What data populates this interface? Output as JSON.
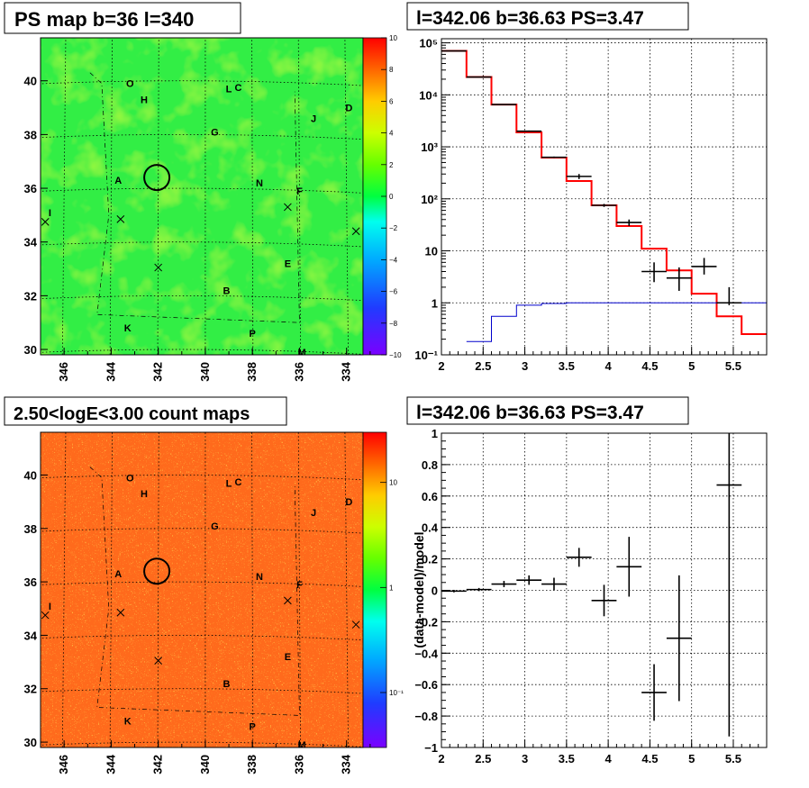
{
  "panels": {
    "ps_map": {
      "title": "PS map b=36 l=340",
      "colorbar_ticks": [
        "10",
        "8",
        "6",
        "4",
        "2",
        "0",
        "−2",
        "−4",
        "−6",
        "−8",
        "−10"
      ],
      "x_ticks": [
        "346",
        "344",
        "342",
        "340",
        "338",
        "336",
        "334"
      ],
      "y_ticks": [
        "40",
        "38",
        "36",
        "34",
        "32",
        "30"
      ]
    },
    "spectrum": {
      "title": "l=342.06 b=36.63 PS=3.47",
      "x_ticks": [
        "2",
        "2.5",
        "3",
        "3.5",
        "4",
        "4.5",
        "5",
        "5.5"
      ],
      "y_ticks": [
        "10⁵",
        "10⁴",
        "10³",
        "10²",
        "10",
        "1",
        "10⁻¹"
      ]
    },
    "count_map": {
      "title": "2.50<logE<3.00 count maps",
      "colorbar_ticks": [
        "10",
        "1",
        "10⁻¹"
      ],
      "x_ticks": [
        "346",
        "344",
        "342",
        "340",
        "338",
        "336",
        "334"
      ],
      "y_ticks": [
        "40",
        "38",
        "36",
        "34",
        "32",
        "30"
      ]
    },
    "residual": {
      "title": "l=342.06 b=36.63 PS=3.47",
      "ylabel": "(data-model)/model",
      "x_ticks": [
        "2",
        "2.5",
        "3",
        "3.5",
        "4",
        "4.5",
        "5",
        "5.5"
      ],
      "y_ticks": [
        "1",
        "0.8",
        "0.6",
        "0.4",
        "0.2",
        "0",
        "−0.2",
        "−0.4",
        "−0.6",
        "−0.8",
        "−1"
      ]
    }
  },
  "source_labels": [
    "O",
    "L",
    "C",
    "H",
    "D",
    "J",
    "G",
    "A",
    "N",
    "F",
    "I",
    "E",
    "B",
    "K",
    "P",
    "M"
  ],
  "colors": {
    "model_red": "#ff0000",
    "background_blue": "#0000cc",
    "data_black": "#000000",
    "ps_map_fill": "#33ee44",
    "count_map_fill": "#ff6a1a"
  },
  "chart_data": [
    {
      "type": "heatmap",
      "name_printed": "PS map b=36 l=340",
      "xlim": [
        347,
        333.3
      ],
      "ylim": [
        29.8,
        41.6
      ],
      "color_range": [
        -10,
        10
      ],
      "markers": [
        {
          "label": "O",
          "l": 343.2,
          "b": 39.9
        },
        {
          "label": "L",
          "l": 339.0,
          "b": 39.7
        },
        {
          "label": "C",
          "l": 338.6,
          "b": 39.75
        },
        {
          "label": "H",
          "l": 342.6,
          "b": 39.3
        },
        {
          "label": "D",
          "l": 333.9,
          "b": 39.0
        },
        {
          "label": "J",
          "l": 335.4,
          "b": 38.6
        },
        {
          "label": "G",
          "l": 339.6,
          "b": 38.1
        },
        {
          "label": "A",
          "l": 343.7,
          "b": 36.3
        },
        {
          "label": "N",
          "l": 337.7,
          "b": 36.2
        },
        {
          "label": "F",
          "l": 336.0,
          "b": 35.9
        },
        {
          "label": "I",
          "l": 346.6,
          "b": 35.1
        },
        {
          "label": "E",
          "l": 336.5,
          "b": 33.2
        },
        {
          "label": "B",
          "l": 339.1,
          "b": 32.2
        },
        {
          "label": "K",
          "l": 343.3,
          "b": 30.8
        },
        {
          "label": "P",
          "l": 338.0,
          "b": 30.6
        },
        {
          "label": "M",
          "l": 335.9,
          "b": 29.9
        }
      ],
      "crosses": [
        {
          "l": 346.8,
          "b": 34.75
        },
        {
          "l": 343.6,
          "b": 34.85
        },
        {
          "l": 336.5,
          "b": 35.3
        },
        {
          "l": 333.6,
          "b": 34.4
        },
        {
          "l": 342.0,
          "b": 33.05
        }
      ],
      "circle": {
        "l": 342.06,
        "b": 36.4
      }
    },
    {
      "type": "line",
      "title": "l=342.06 b=36.63 PS=3.47",
      "y_scale": "log",
      "xlim": [
        2,
        5.9
      ],
      "ylim": [
        0.1,
        120000
      ],
      "series": [
        {
          "bin_edges": [
            2.0,
            2.3,
            2.6,
            2.9,
            3.2,
            3.5,
            3.8,
            4.1,
            4.4,
            4.7,
            5.0,
            5.3,
            5.6,
            5.9
          ],
          "values": [
            70000,
            22000,
            6500,
            1900,
            620,
            220,
            75,
            30,
            11,
            4.2,
            1.5,
            0.55,
            0.25
          ]
        },
        {
          "bin_edges": [
            2.3,
            2.6,
            2.9,
            3.2,
            3.5,
            3.8,
            4.1,
            4.4,
            4.7,
            5.0,
            5.3,
            5.6,
            5.9
          ],
          "values": [
            0.18,
            0.55,
            0.9,
            0.97,
            1.0,
            1.0,
            1.0,
            1.0,
            1.0,
            1.0,
            1.0,
            1.0
          ]
        },
        {
          "x": [
            2.15,
            2.45,
            2.75,
            3.05,
            3.35,
            3.65,
            3.95,
            4.25,
            4.55,
            4.85,
            5.15,
            5.45
          ],
          "y": [
            70000,
            22000,
            6500,
            2000,
            630,
            270,
            75,
            35,
            4,
            3,
            5,
            1
          ],
          "xerr": 0.15,
          "yerr_low": [
            0,
            0,
            0,
            60,
            20,
            30,
            5,
            5,
            1.5,
            1.3,
            1.5,
            0.1
          ],
          "yerr_high": [
            0,
            0,
            0,
            60,
            20,
            30,
            5,
            5,
            2.0,
            1.8,
            2.3,
            1.0
          ]
        }
      ]
    },
    {
      "type": "heatmap",
      "title": "2.50<logE<3.00 count maps",
      "xlim": [
        347,
        333.3
      ],
      "ylim": [
        29.8,
        41.6
      ],
      "color_scale": "log",
      "color_range": [
        0.03,
        30
      ],
      "markers": "same as PS map",
      "circle": {
        "l": 342.06,
        "b": 36.4
      }
    },
    {
      "type": "scatter",
      "title": "l=342.06 b=36.63 PS=3.47",
      "ylabel": "(data-model)/model",
      "xlim": [
        2,
        5.9
      ],
      "ylim": [
        -1,
        1
      ],
      "series": [
        {
          "x": [
            2.15,
            2.45,
            2.75,
            3.05,
            3.35,
            3.65,
            3.95,
            4.25,
            4.55,
            4.85,
            5.45
          ],
          "y": [
            -0.005,
            0.005,
            0.04,
            0.065,
            0.04,
            0.21,
            -0.065,
            0.15,
            -0.65,
            -0.305,
            0.67
          ],
          "xerr": 0.15,
          "yerr": [
            0.008,
            0.01,
            0.02,
            0.03,
            0.04,
            0.06,
            0.1,
            0.19,
            0.18,
            0.4,
            1.6
          ]
        }
      ]
    }
  ]
}
